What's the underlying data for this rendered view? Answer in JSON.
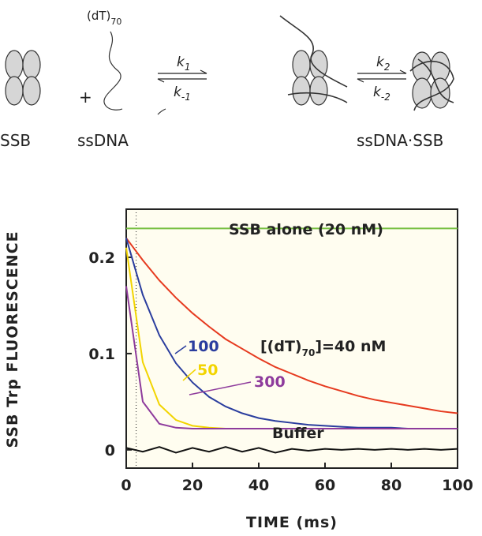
{
  "scheme": {
    "ssb": "SSB",
    "plus": "+",
    "ssdna": "ssDNA",
    "dt": "(dT)",
    "dt_sub": "70",
    "k1": "k",
    "k1_sub": "1",
    "km1": "k",
    "km1_sub": "-1",
    "k2": "k",
    "k2_sub": "2",
    "km2": "k",
    "km2_sub": "-2",
    "complex": "ssDNA·SSB"
  },
  "chart_data": {
    "type": "line",
    "xlabel": "TIME (ms)",
    "ylabel": "SSB Trp FLUORESCENCE",
    "x": [
      0,
      5,
      10,
      15,
      20,
      25,
      30,
      35,
      40,
      45,
      50,
      55,
      60,
      65,
      70,
      75,
      80,
      85,
      90,
      95,
      100
    ],
    "xlim": [
      0,
      100
    ],
    "xticks": [
      0,
      20,
      40,
      60,
      80,
      100
    ],
    "ylim": [
      -0.019,
      0.25
    ],
    "yticks": [
      0,
      0.1,
      0.2
    ],
    "reference_line_x": 3,
    "series": [
      {
        "name": "SSB alone (20 nM)",
        "color": "#78c043",
        "values": [
          0.23,
          0.23,
          0.23,
          0.23,
          0.23,
          0.23,
          0.23,
          0.23,
          0.23,
          0.23,
          0.23,
          0.23,
          0.23,
          0.23,
          0.23,
          0.23,
          0.23,
          0.23,
          0.23,
          0.23,
          0.23
        ]
      },
      {
        "name": "40 nM",
        "color": "#e63a1f",
        "values": [
          0.22,
          0.197,
          0.176,
          0.158,
          0.142,
          0.128,
          0.115,
          0.105,
          0.095,
          0.086,
          0.079,
          0.072,
          0.066,
          0.061,
          0.056,
          0.052,
          0.049,
          0.046,
          0.043,
          0.04,
          0.038
        ]
      },
      {
        "name": "100",
        "color": "#2a3d9e",
        "values": [
          0.22,
          0.161,
          0.119,
          0.09,
          0.07,
          0.055,
          0.045,
          0.038,
          0.033,
          0.03,
          0.028,
          0.026,
          0.025,
          0.024,
          0.023,
          0.023,
          0.023,
          0.022,
          0.022,
          0.022,
          0.022
        ]
      },
      {
        "name": "50",
        "color": "#f2d400",
        "values": [
          0.21,
          0.091,
          0.047,
          0.031,
          0.025,
          0.023,
          0.022,
          0.022,
          0.022,
          0.022,
          0.022,
          0.022,
          0.022,
          0.022,
          0.022,
          0.022,
          0.022,
          0.022,
          0.022,
          0.022,
          0.022
        ]
      },
      {
        "name": "300",
        "color": "#8e3b9c",
        "values": [
          0.17,
          0.05,
          0.027,
          0.023,
          0.022,
          0.022,
          0.022,
          0.022,
          0.022,
          0.022,
          0.022,
          0.022,
          0.022,
          0.022,
          0.022,
          0.022,
          0.022,
          0.022,
          0.022,
          0.022,
          0.022
        ]
      },
      {
        "name": "Buffer",
        "color": "#111111",
        "values": [
          0.002,
          -0.002,
          0.003,
          -0.003,
          0.002,
          -0.002,
          0.003,
          -0.002,
          0.002,
          -0.003,
          0.001,
          -0.001,
          0.001,
          0,
          0.001,
          0,
          0.001,
          0,
          0.001,
          0,
          0.001
        ]
      }
    ],
    "annotations": {
      "conc_prefix": "[(dT)",
      "conc_sub": "70",
      "conc_suffix": "]=40 nM"
    }
  }
}
